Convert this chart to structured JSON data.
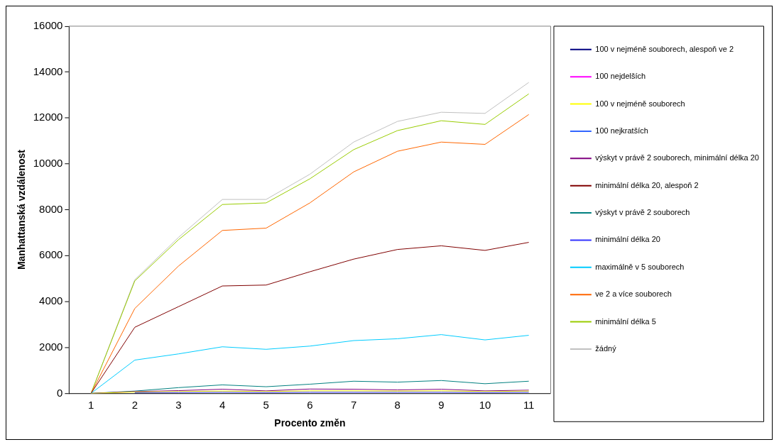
{
  "chart_data": {
    "type": "line",
    "xlabel": "Procento změn",
    "ylabel": "Manhattanská vzdálenost",
    "categories": [
      "1",
      "2",
      "3",
      "4",
      "5",
      "6",
      "7",
      "8",
      "9",
      "10",
      "11"
    ],
    "ylim": [
      0,
      16000
    ],
    "yticks": [
      0,
      2000,
      4000,
      6000,
      8000,
      10000,
      12000,
      14000,
      16000
    ],
    "grid": false,
    "legend": "right",
    "marker": "none",
    "line_style": "solid",
    "series": [
      {
        "name": "100 v nejméně souborech, alespoň ve 2",
        "color": "#000080",
        "values": [
          null,
          null,
          null,
          null,
          null,
          null,
          null,
          null,
          null,
          null,
          null
        ]
      },
      {
        "name": "100 nejdelších",
        "color": "#ff00ff",
        "values": [
          null,
          null,
          null,
          null,
          null,
          null,
          null,
          null,
          null,
          null,
          null
        ]
      },
      {
        "name": "100 v nejméně souborech",
        "color": "#ffff00",
        "values": [
          0,
          60,
          80,
          100,
          80,
          110,
          110,
          100,
          110,
          80,
          100
        ]
      },
      {
        "name": "100 nejkratších",
        "color": "#3366ff",
        "values": [
          null,
          null,
          null,
          null,
          null,
          null,
          null,
          null,
          null,
          null,
          null
        ]
      },
      {
        "name": "výskyt v právě 2 souborech, minimální délka 20",
        "color": "#800080",
        "values": [
          0,
          80,
          120,
          180,
          110,
          190,
          180,
          150,
          180,
          110,
          140
        ]
      },
      {
        "name": "minimální délka 20, alespoň 2",
        "color": "#800000",
        "values": [
          0,
          2880,
          3780,
          4680,
          4720,
          5300,
          5850,
          6270,
          6430,
          6230,
          6580
        ]
      },
      {
        "name": "výskyt v právě 2 souborech",
        "color": "#008080",
        "values": [
          0,
          100,
          250,
          370,
          290,
          400,
          530,
          490,
          560,
          420,
          530
        ]
      },
      {
        "name": "minimální délka 20",
        "color": "#3333ff",
        "values": [
          null,
          30,
          40,
          50,
          40,
          50,
          50,
          50,
          50,
          40,
          50
        ]
      },
      {
        "name": "maximálně v 5 souborech",
        "color": "#00ccff",
        "values": [
          0,
          1450,
          1720,
          2030,
          1920,
          2060,
          2300,
          2380,
          2560,
          2330,
          2530
        ]
      },
      {
        "name": "ve 2 a více souborech",
        "color": "#ff6600",
        "values": [
          0,
          3700,
          5550,
          7100,
          7200,
          8300,
          9650,
          10550,
          10950,
          10850,
          12150
        ]
      },
      {
        "name": "minimální délka 5",
        "color": "#99cc00",
        "values": [
          0,
          4900,
          6700,
          8230,
          8300,
          9350,
          10620,
          11450,
          11880,
          11720,
          13050
        ]
      },
      {
        "name": "žádný",
        "color": "#c0c0c0",
        "values": [
          0,
          4950,
          6800,
          8450,
          8450,
          9550,
          10950,
          11850,
          12250,
          12200,
          13550
        ]
      }
    ]
  }
}
